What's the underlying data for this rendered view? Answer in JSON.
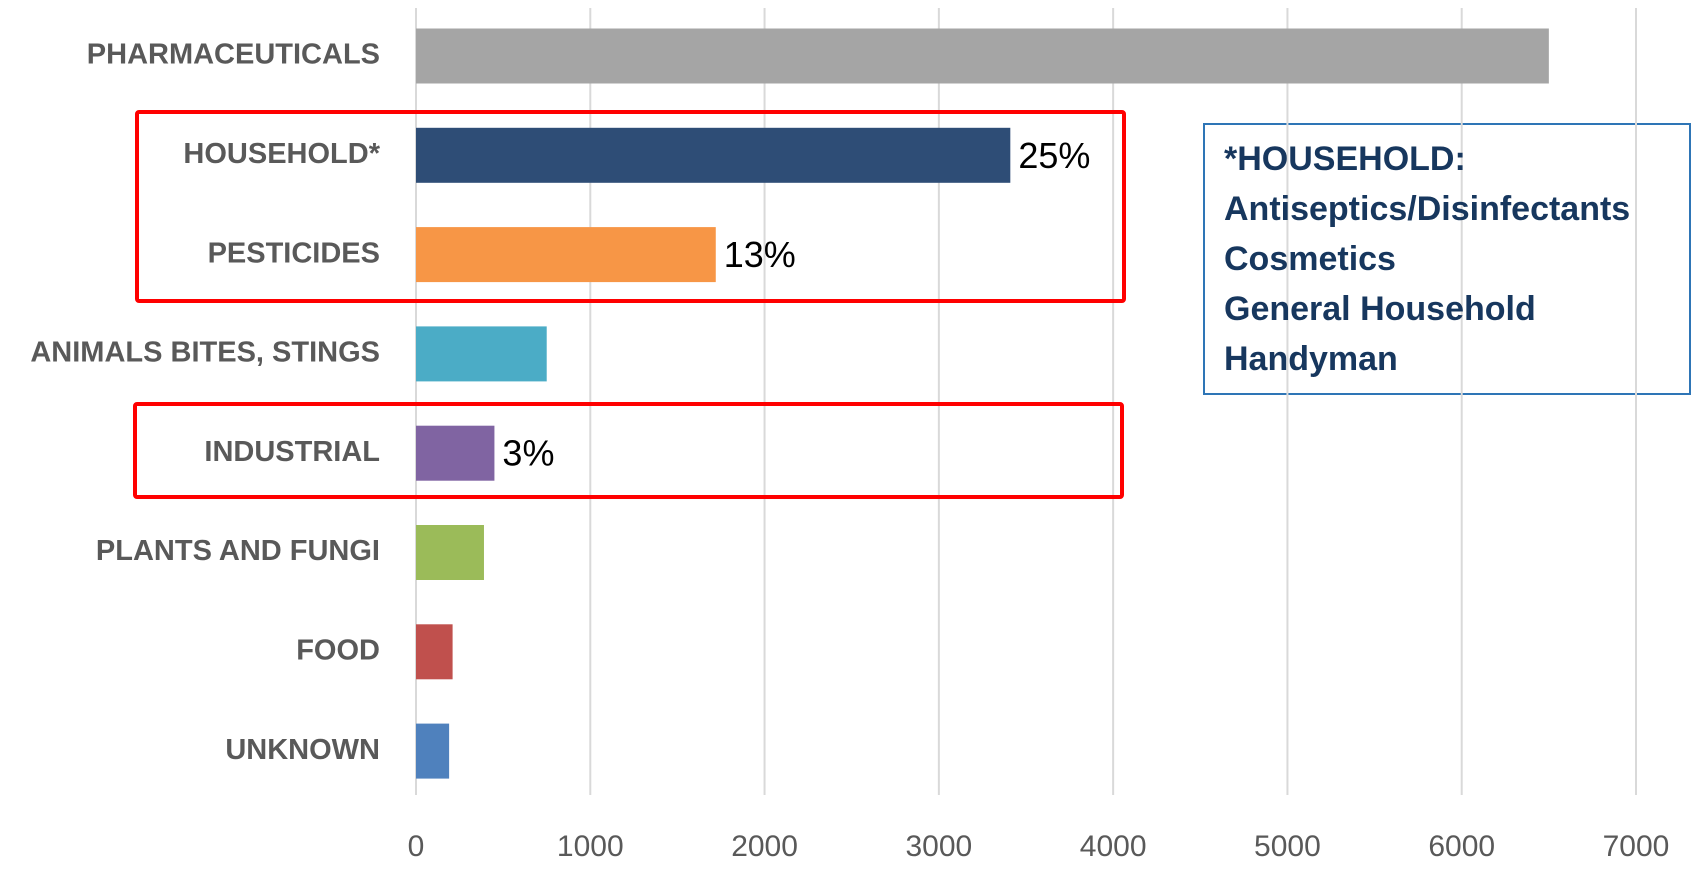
{
  "chart_data": {
    "type": "bar",
    "orientation": "horizontal",
    "categories": [
      "PHARMACEUTICALS",
      "HOUSEHOLD*",
      "PESTICIDES",
      "ANIMALS BITES, STINGS",
      "INDUSTRIAL",
      "PLANTS AND FUNGI",
      "FOOD",
      "UNKNOWN"
    ],
    "values": [
      6500,
      3410,
      1720,
      750,
      450,
      390,
      210,
      190
    ],
    "value_labels": [
      null,
      "25%",
      "13%",
      null,
      "3%",
      null,
      null,
      null
    ],
    "colors": [
      "#a5a5a5",
      "#2e4d76",
      "#f79646",
      "#4bacc6",
      "#8064a2",
      "#9bbb59",
      "#c0504d",
      "#4f81bd"
    ],
    "xlim": [
      0,
      7000
    ],
    "xticks": [
      0,
      1000,
      2000,
      3000,
      4000,
      5000,
      6000,
      7000
    ],
    "grid": true,
    "annotations": [
      "*HOUSEHOLD:",
      "Antiseptics/Disinfectants",
      "Cosmetics",
      "General Household",
      "Handyman"
    ]
  }
}
